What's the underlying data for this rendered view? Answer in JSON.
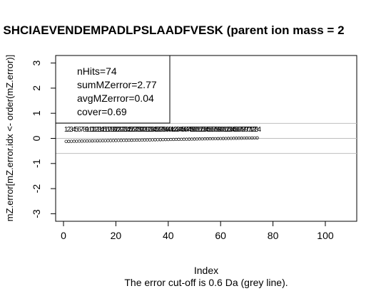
{
  "chart_data": {
    "type": "scatter",
    "title": "f SHCIAEVENDEMPADLPSLAADFVESK (parent ion mass = 2",
    "xlabel": "Index",
    "ylabel": "mZ.error[mZ.error.idx <- order(mZ.error)]",
    "subtitle": "The error cut-off is 0.6 Da (grey line).",
    "xlim": [
      -3,
      112
    ],
    "ylim": [
      -3.3,
      3.3
    ],
    "x_ticks": [
      0,
      20,
      40,
      60,
      80,
      100
    ],
    "y_ticks": [
      -3,
      -2,
      -1,
      0,
      1,
      2,
      3
    ],
    "cutoff": 0.6,
    "reference_line": 0,
    "n_points": 74,
    "y_start": -0.12,
    "y_end": 0.02,
    "label_band_y": 0.35,
    "grid": false,
    "point_color": "#000000",
    "line_color": "#bebebe",
    "legend": {
      "position": "top-left",
      "lines": [
        "nHits=74",
        "sumMZerror=2.77",
        "avgMZerror=0.04",
        "cover=0.69"
      ]
    }
  }
}
